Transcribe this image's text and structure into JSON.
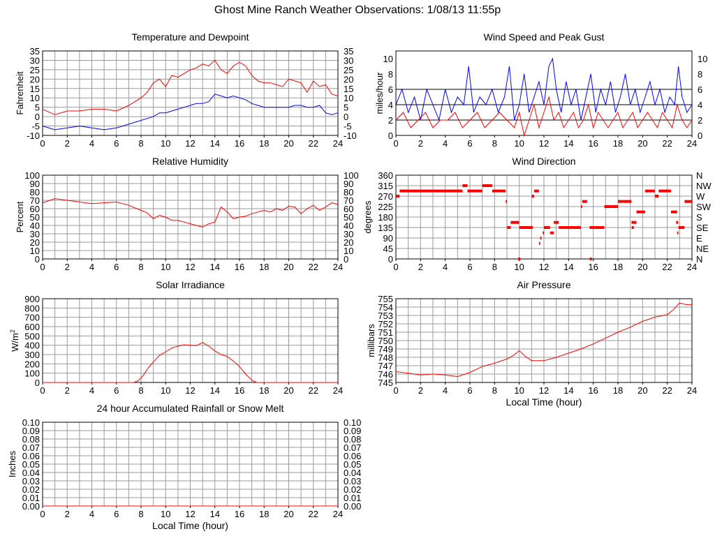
{
  "page": {
    "title": "Ghost Mine Ranch Weather Observations: 1/08/13 11:55p"
  },
  "colors": {
    "red": "#ff0000",
    "blue": "#0000ff",
    "grid": "#9a9a9a",
    "axis": "#000000"
  },
  "chart_data": [
    {
      "id": "temp",
      "type": "line",
      "title": "Temperature and Dewpoint",
      "ylabel": "Fahrenheit",
      "ylabel_right": "",
      "xlabel": "",
      "xlim": [
        0,
        24
      ],
      "ylim": [
        -10,
        35
      ],
      "yticks": [
        "-10",
        "-5",
        "0",
        "5",
        "10",
        "15",
        "20",
        "25",
        "30",
        "35"
      ],
      "xticks": [
        "0",
        "2",
        "4",
        "6",
        "8",
        "10",
        "12",
        "14",
        "16",
        "18",
        "20",
        "22",
        "24"
      ],
      "right_ticks": true,
      "grid": true,
      "series": [
        {
          "color": "#ff0000",
          "x": [
            0,
            1,
            2,
            3,
            4,
            5,
            6,
            7,
            8,
            8.5,
            9,
            9.5,
            10,
            10.5,
            11,
            11.5,
            12,
            12.5,
            13,
            13.5,
            14,
            14.5,
            15,
            15.5,
            16,
            16.5,
            17,
            17.5,
            18,
            18.5,
            19,
            19.5,
            20,
            20.5,
            21,
            21.5,
            22,
            22.5,
            23,
            23.5,
            24
          ],
          "y": [
            4,
            1,
            3,
            3,
            4,
            4,
            3,
            6,
            10,
            13,
            18,
            20,
            16,
            22,
            21,
            23,
            25,
            26,
            28,
            27,
            30,
            25,
            23,
            27,
            29,
            27,
            22,
            19,
            18,
            18,
            17,
            16,
            20,
            19,
            18,
            13,
            19,
            16,
            17,
            12,
            11
          ]
        },
        {
          "color": "#0000ff",
          "x": [
            0,
            1,
            2,
            3,
            4,
            5,
            6,
            7,
            8,
            8.5,
            9,
            9.5,
            10,
            10.5,
            11,
            11.5,
            12,
            12.5,
            13,
            13.5,
            14,
            14.5,
            15,
            15.5,
            16,
            16.5,
            17,
            17.5,
            18,
            18.5,
            19,
            19.5,
            20,
            20.5,
            21,
            21.5,
            22,
            22.5,
            23,
            23.5,
            24
          ],
          "y": [
            -5,
            -7,
            -6,
            -5,
            -6,
            -7,
            -6,
            -4,
            -2,
            -1,
            0,
            2,
            2,
            3,
            4,
            5,
            6,
            7,
            7,
            8,
            12,
            11,
            10,
            11,
            10,
            9,
            7,
            6,
            5,
            5,
            5,
            5,
            5,
            6,
            6,
            5,
            5,
            6,
            2,
            1,
            2
          ]
        }
      ]
    },
    {
      "id": "wind",
      "type": "line",
      "title": "Wind Speed and Peak Gust",
      "ylabel": "miles/hour",
      "xlabel": "",
      "xlim": [
        0,
        24
      ],
      "ylim": [
        0,
        11
      ],
      "yticks": [
        "0",
        "2",
        "4",
        "6",
        "8",
        "10"
      ],
      "ytick_values": [
        0,
        2,
        4,
        6,
        8,
        10
      ],
      "xticks": [
        "0",
        "2",
        "4",
        "6",
        "8",
        "10",
        "12",
        "14",
        "16",
        "18",
        "20",
        "22",
        "24"
      ],
      "right_ticks": true,
      "grid": false,
      "hlines": [
        2,
        4,
        6
      ],
      "series": [
        {
          "color": "#0000ff",
          "x": [
            0,
            0.5,
            1,
            1.5,
            2,
            2.5,
            3,
            3.5,
            4,
            4.5,
            5,
            5.5,
            5.9,
            6.3,
            6.8,
            7.3,
            7.8,
            8.3,
            8.8,
            9.2,
            9.6,
            10,
            10.4,
            10.8,
            11.2,
            11.6,
            12,
            12.4,
            12.7,
            13,
            13.4,
            13.8,
            14.2,
            14.6,
            15,
            15.4,
            15.8,
            16.2,
            16.6,
            17,
            17.4,
            17.8,
            18.2,
            18.6,
            19,
            19.4,
            19.8,
            20.2,
            20.6,
            21,
            21.4,
            21.8,
            22.2,
            22.6,
            22.9,
            23.2,
            23.6,
            24
          ],
          "y": [
            4,
            6,
            3,
            5,
            2,
            6,
            4,
            2,
            6,
            3,
            5,
            4,
            9,
            3,
            5,
            4,
            6,
            3,
            5,
            9,
            2,
            4,
            8,
            3,
            5,
            7,
            4,
            9,
            10,
            6,
            3,
            7,
            4,
            6,
            2,
            5,
            8,
            3,
            6,
            4,
            7,
            3,
            5,
            8,
            4,
            6,
            3,
            5,
            7,
            4,
            6,
            3,
            5,
            4,
            9,
            5,
            3,
            4
          ]
        },
        {
          "color": "#ff0000",
          "x": [
            0,
            0.6,
            1.2,
            1.8,
            2.4,
            3,
            3.6,
            4.2,
            4.8,
            5.4,
            6,
            6.6,
            7.2,
            7.8,
            8.4,
            9,
            9.6,
            10,
            10.4,
            10.8,
            11.2,
            11.6,
            12,
            12.4,
            12.8,
            13.2,
            13.6,
            14,
            14.4,
            14.8,
            15.2,
            15.6,
            16,
            16.4,
            16.8,
            17.2,
            17.6,
            18,
            18.4,
            18.8,
            19.2,
            19.6,
            20,
            20.4,
            20.8,
            21.2,
            21.6,
            22,
            22.4,
            22.8,
            23.2,
            23.6,
            24
          ],
          "y": [
            2,
            3,
            1,
            2,
            3,
            1,
            2,
            2,
            3,
            1,
            2,
            3,
            1,
            2,
            3,
            2,
            1,
            3,
            0,
            2,
            4,
            1,
            3,
            5,
            2,
            3,
            1,
            2,
            3,
            1,
            2,
            4,
            1,
            3,
            2,
            1,
            2,
            3,
            1,
            2,
            3,
            1,
            2,
            3,
            2,
            1,
            3,
            2,
            1,
            4,
            2,
            1,
            2
          ]
        }
      ]
    },
    {
      "id": "rh",
      "type": "line",
      "title": "Relative Humidity",
      "ylabel": "Percent",
      "xlabel": "",
      "xlim": [
        0,
        24
      ],
      "ylim": [
        0,
        100
      ],
      "yticks": [
        "0",
        "10",
        "20",
        "30",
        "40",
        "50",
        "60",
        "70",
        "80",
        "90",
        "100"
      ],
      "xticks": [
        "0",
        "2",
        "4",
        "6",
        "8",
        "10",
        "12",
        "14",
        "16",
        "18",
        "20",
        "22",
        "24"
      ],
      "right_ticks": true,
      "grid": true,
      "series": [
        {
          "color": "#ff0000",
          "x": [
            0,
            1,
            2,
            3,
            4,
            5,
            6,
            7,
            8,
            8.5,
            9,
            9.5,
            10,
            10.5,
            11,
            11.5,
            12,
            12.5,
            13,
            13.5,
            14,
            14.5,
            15,
            15.5,
            16,
            16.5,
            17,
            17.5,
            18,
            18.5,
            19,
            19.5,
            20,
            20.5,
            21,
            21.5,
            22,
            22.5,
            23,
            23.5,
            24
          ],
          "y": [
            67,
            72,
            70,
            68,
            66,
            67,
            68,
            64,
            58,
            55,
            48,
            52,
            50,
            46,
            46,
            44,
            42,
            40,
            38,
            42,
            44,
            62,
            56,
            48,
            50,
            51,
            54,
            56,
            58,
            56,
            60,
            58,
            63,
            62,
            54,
            60,
            64,
            58,
            62,
            67,
            65
          ]
        }
      ]
    },
    {
      "id": "dir",
      "type": "scatter",
      "title": "Wind Direction",
      "ylabel": "degrees",
      "xlabel": "",
      "xlim": [
        0,
        24
      ],
      "ylim": [
        0,
        360
      ],
      "yticks": [
        "0",
        "45",
        "90",
        "135",
        "180",
        "225",
        "270",
        "315",
        "360"
      ],
      "xticks": [
        "0",
        "2",
        "4",
        "6",
        "8",
        "10",
        "12",
        "14",
        "16",
        "18",
        "20",
        "22",
        "24"
      ],
      "compass": [
        "N",
        "NE",
        "E",
        "SE",
        "S",
        "SW",
        "W",
        "NW",
        "N"
      ],
      "grid": true,
      "segments": [
        [
          0.0,
          0.3,
          270
        ],
        [
          0.3,
          5.4,
          292
        ],
        [
          5.4,
          5.8,
          315
        ],
        [
          5.8,
          7.0,
          292
        ],
        [
          7.0,
          7.8,
          315
        ],
        [
          7.8,
          8.9,
          292
        ],
        [
          8.9,
          9.0,
          247
        ],
        [
          9.1,
          9.3,
          135
        ],
        [
          9.3,
          10.0,
          157
        ],
        [
          10.0,
          11.1,
          135
        ],
        [
          11.1,
          11.2,
          270
        ],
        [
          11.2,
          11.6,
          292
        ],
        [
          11.6,
          11.7,
          67
        ],
        [
          11.7,
          11.8,
          90
        ],
        [
          11.9,
          12.0,
          112
        ],
        [
          12.0,
          12.5,
          135
        ],
        [
          12.5,
          12.8,
          112
        ],
        [
          12.8,
          13.2,
          157
        ],
        [
          13.2,
          15.0,
          135
        ],
        [
          15.0,
          15.1,
          225
        ],
        [
          15.1,
          15.5,
          247
        ],
        [
          15.7,
          16.9,
          135
        ],
        [
          16.9,
          18.0,
          225
        ],
        [
          18.0,
          19.1,
          247
        ],
        [
          19.1,
          19.5,
          157
        ],
        [
          19.5,
          20.2,
          202
        ],
        [
          20.2,
          21.0,
          292
        ],
        [
          21.0,
          21.3,
          270
        ],
        [
          21.3,
          22.3,
          292
        ],
        [
          22.3,
          22.8,
          202
        ],
        [
          22.8,
          22.9,
          112
        ],
        [
          22.9,
          23.4,
          135
        ],
        [
          23.4,
          24.0,
          247
        ]
      ],
      "points": [
        [
          10.0,
          0
        ],
        [
          15.8,
          0
        ],
        [
          9.1,
          135
        ],
        [
          19.2,
          135
        ],
        [
          22.8,
          157
        ],
        [
          11.1,
          270
        ]
      ]
    },
    {
      "id": "solar",
      "type": "area",
      "title": "Solar Irradiance",
      "ylabel": "W/m",
      "ylabel_sup": "2",
      "xlabel": "",
      "xlim": [
        0,
        24
      ],
      "ylim": [
        0,
        900
      ],
      "yticks": [
        "0",
        "100",
        "200",
        "300",
        "400",
        "500",
        "600",
        "700",
        "800",
        "900"
      ],
      "xticks": [
        "0",
        "2",
        "4",
        "6",
        "8",
        "10",
        "12",
        "14",
        "16",
        "18",
        "20",
        "22",
        "24"
      ],
      "right_ticks": false,
      "grid": true,
      "series": [
        {
          "color": "#ff0000",
          "x": [
            0,
            7.4,
            7.8,
            8.2,
            8.6,
            9,
            9.5,
            10,
            10.5,
            11,
            11.5,
            12,
            12.5,
            13,
            13.5,
            14,
            14.5,
            15,
            15.5,
            16,
            16.5,
            17,
            17.4,
            24
          ],
          "y": [
            0,
            0,
            20,
            80,
            160,
            220,
            290,
            330,
            370,
            390,
            405,
            400,
            395,
            430,
            390,
            340,
            300,
            280,
            230,
            170,
            90,
            25,
            0,
            0
          ]
        }
      ]
    },
    {
      "id": "press",
      "type": "line",
      "title": "Air Pressure",
      "ylabel": "millibars",
      "xlabel": "Local Time (hour)",
      "xlim": [
        0,
        24
      ],
      "ylim": [
        745,
        755
      ],
      "yticks": [
        "745",
        "746",
        "747",
        "748",
        "749",
        "750",
        "751",
        "752",
        "753",
        "754",
        "755"
      ],
      "xticks": [
        "0",
        "2",
        "4",
        "6",
        "8",
        "10",
        "12",
        "14",
        "16",
        "18",
        "20",
        "22",
        "24"
      ],
      "right_ticks": false,
      "grid": true,
      "series": [
        {
          "color": "#ff0000",
          "x": [
            0,
            1,
            2,
            3,
            4,
            5,
            6,
            7,
            8,
            9,
            9.5,
            10,
            10.5,
            11,
            12,
            13,
            14,
            15,
            16,
            17,
            18,
            19,
            20,
            21,
            22,
            22.5,
            23,
            23.5,
            24
          ],
          "y": [
            746.3,
            746.1,
            745.9,
            746.0,
            745.9,
            745.7,
            746.2,
            746.9,
            747.3,
            747.8,
            748.2,
            748.8,
            748.1,
            747.6,
            747.6,
            748.0,
            748.5,
            749.0,
            749.6,
            750.3,
            751.0,
            751.6,
            752.3,
            752.8,
            753.1,
            753.7,
            754.5,
            754.3,
            754.3
          ]
        }
      ]
    },
    {
      "id": "rain",
      "type": "line",
      "title": "24 hour Accumulated Rainfall or Snow Melt",
      "ylabel": "Inches",
      "xlabel": "Local Time (hour)",
      "xlim": [
        0,
        24
      ],
      "ylim": [
        0,
        0.1
      ],
      "yticks": [
        "0.00",
        "0.01",
        "0.02",
        "0.03",
        "0.04",
        "0.05",
        "0.06",
        "0.07",
        "0.08",
        "0.09",
        "0.10"
      ],
      "xticks": [
        "0",
        "2",
        "4",
        "6",
        "8",
        "10",
        "12",
        "14",
        "16",
        "18",
        "20",
        "22",
        "24"
      ],
      "right_ticks": true,
      "grid": true,
      "series": [
        {
          "color": "#ff0000",
          "x": [
            0,
            24
          ],
          "y": [
            0,
            0
          ]
        }
      ]
    }
  ]
}
